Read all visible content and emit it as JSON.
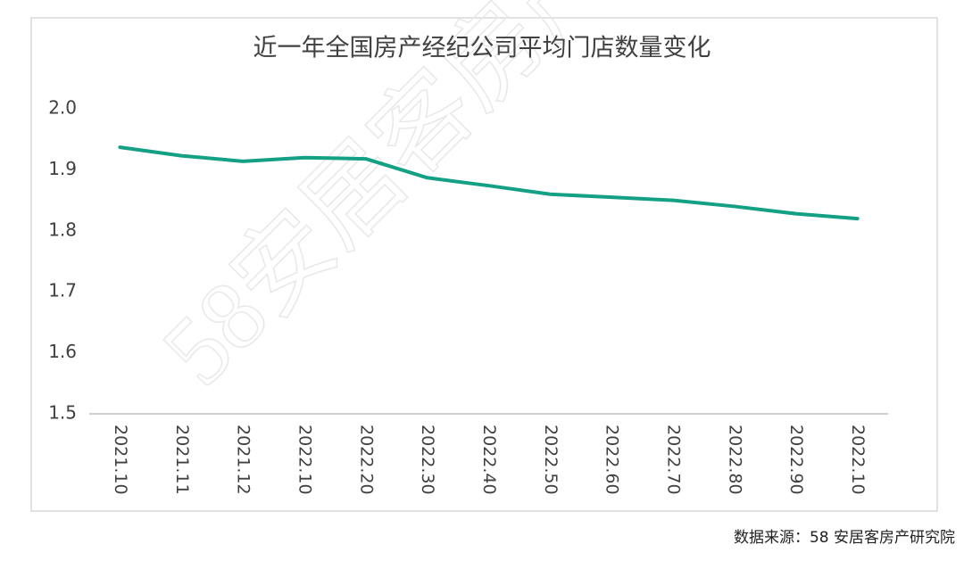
{
  "chart_data": {
    "type": "line",
    "title": "近一年全国房产经纪公司平均门店数量变化",
    "categories": [
      "2021.10",
      "2021.11",
      "2021.12",
      "2022.10",
      "2022.20",
      "2022.30",
      "2022.40",
      "2022.50",
      "2022.60",
      "2022.70",
      "2022.80",
      "2022.90",
      "2022.10"
    ],
    "series": [
      {
        "name": "平均门店数量",
        "color": "#14a085",
        "values": [
          1.937,
          1.923,
          1.914,
          1.92,
          1.918,
          1.887,
          1.874,
          1.86,
          1.855,
          1.85,
          1.84,
          1.828,
          1.82
        ]
      }
    ],
    "ylim": [
      1.5,
      2.0
    ],
    "yticks": [
      1.5,
      1.6,
      1.7,
      1.8,
      1.9,
      {
        "value": 2.0,
        "label": "2.0"
      }
    ],
    "grid": false,
    "source": "数据来源：58 安居客房产研究院",
    "watermark": "58安居客房产"
  }
}
